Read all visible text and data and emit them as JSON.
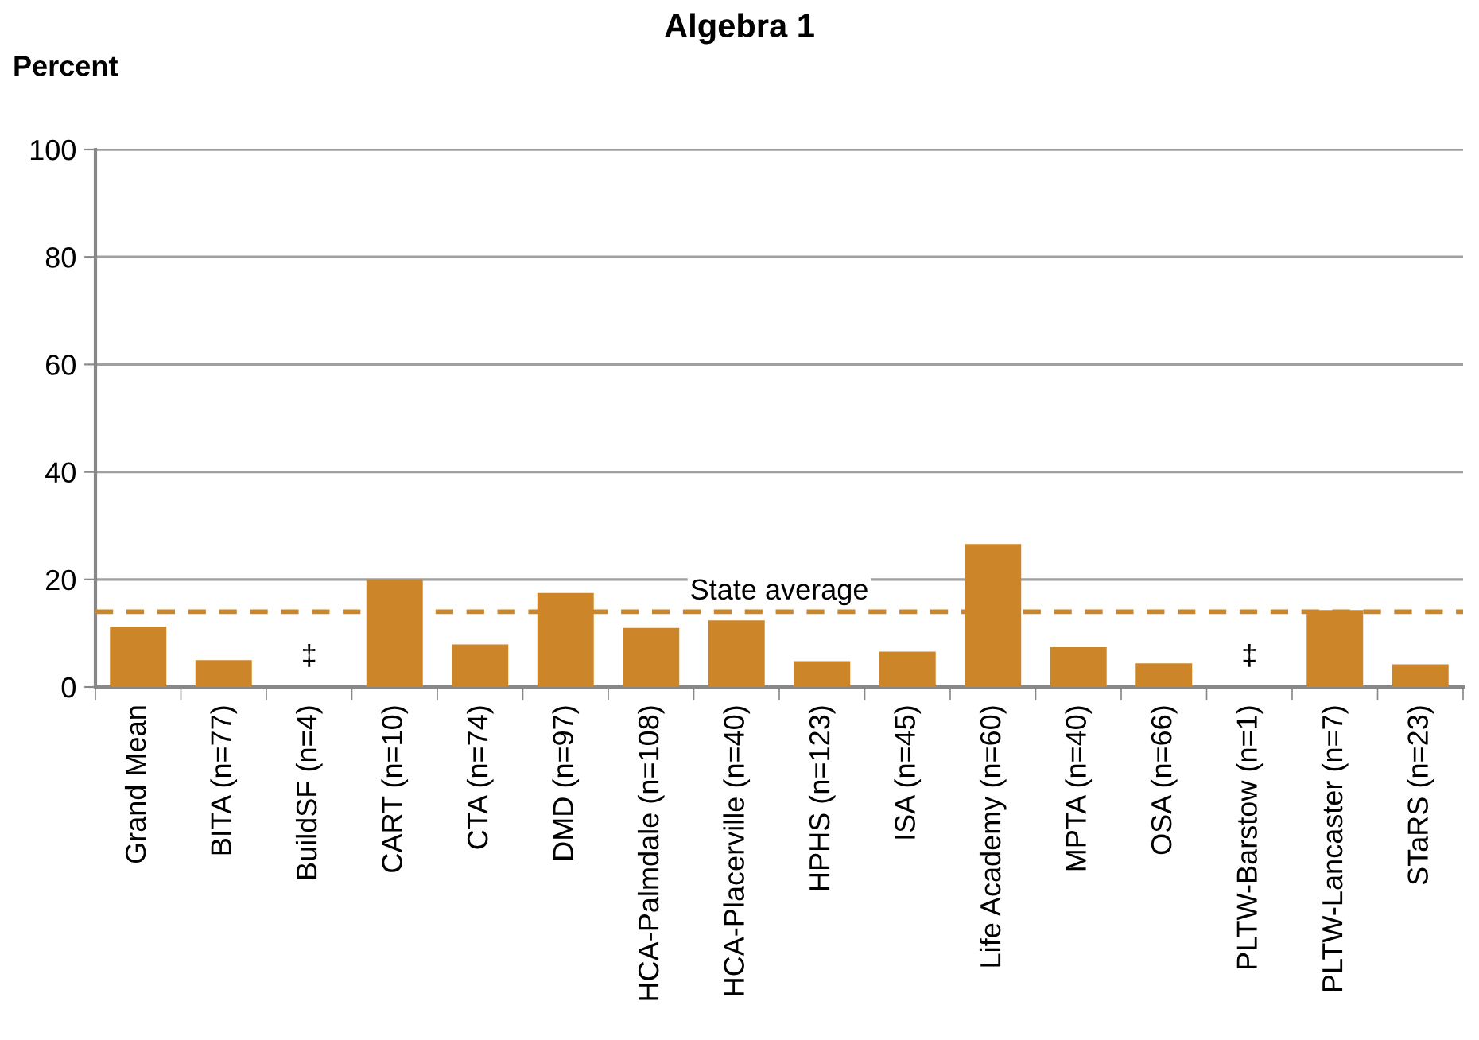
{
  "chart_data": {
    "type": "bar",
    "title": "Algebra 1",
    "ylabel": "Percent",
    "categories": [
      "Grand Mean",
      "BITA (n=77)",
      "BuildSF (n=4)",
      "CART (n=10)",
      "CTA (n=74)",
      "DMD (n=97)",
      "HCA-Palmdale (n=108)",
      "HCA-Placerville (n=40)",
      "HPHS (n=123)",
      "ISA (n=45)",
      "Life Academy (n=60)",
      "MPTA (n=40)",
      "OSA (n=66)",
      "PLTW-Barstow (n=1)",
      "PLTW-Lancaster (n=7)",
      "STaRS (n=23)"
    ],
    "values": [
      11.2,
      5.0,
      null,
      20.0,
      7.9,
      17.5,
      11.0,
      12.4,
      4.8,
      6.6,
      26.6,
      7.4,
      4.4,
      null,
      14.3,
      4.2
    ],
    "color": "#cc8629",
    "ylim": [
      0,
      100
    ],
    "yticks": [
      0,
      20,
      40,
      60,
      80,
      100
    ],
    "grid": "y",
    "ref_lines": [
      {
        "axis": "y",
        "value": 14.0,
        "label": "State average",
        "color": "#cc8629",
        "line_style": "dashed"
      }
    ],
    "annotations": [
      "‡",
      "‡"
    ]
  }
}
